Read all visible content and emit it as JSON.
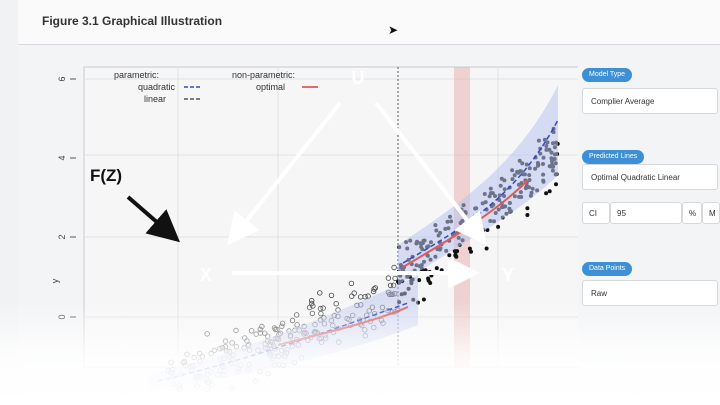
{
  "window": {
    "figure_title": "Figure 3.1 Graphical Illustration"
  },
  "legend": {
    "parametric_heading": "parametric:",
    "nonparametric_heading": "non-parametric:",
    "quadratic_label": "quadratic",
    "optimal_label": "optimal",
    "linear_label": "linear"
  },
  "axes": {
    "ylabel": "y",
    "ytick_labels": [
      "6",
      "4",
      "2",
      "0"
    ]
  },
  "overlay": {
    "node_u": "U",
    "node_x": "X",
    "node_y": "Y",
    "node_fz": "F(Z)",
    "overlay_color": "#ffffff",
    "fz_color": "#111111"
  },
  "sidebar": {
    "model_type_title": "Model Type",
    "model_type_value": "Complier Average",
    "predicted_lines_title": "Predicted Lines",
    "predicted_lines_value": "Optimal  Quadratic  Linear",
    "ci_label": "CI",
    "ci_value": "95",
    "ci_unit": "%",
    "ci_extra": "M",
    "data_points_title": "Data Points",
    "data_points_value": "Raw",
    "accent_color": "#3d8fd6"
  },
  "colors": {
    "quadratic": "#3347c4",
    "optimal": "#e05a5a",
    "highlight_band": "#e8b3b0"
  }
}
